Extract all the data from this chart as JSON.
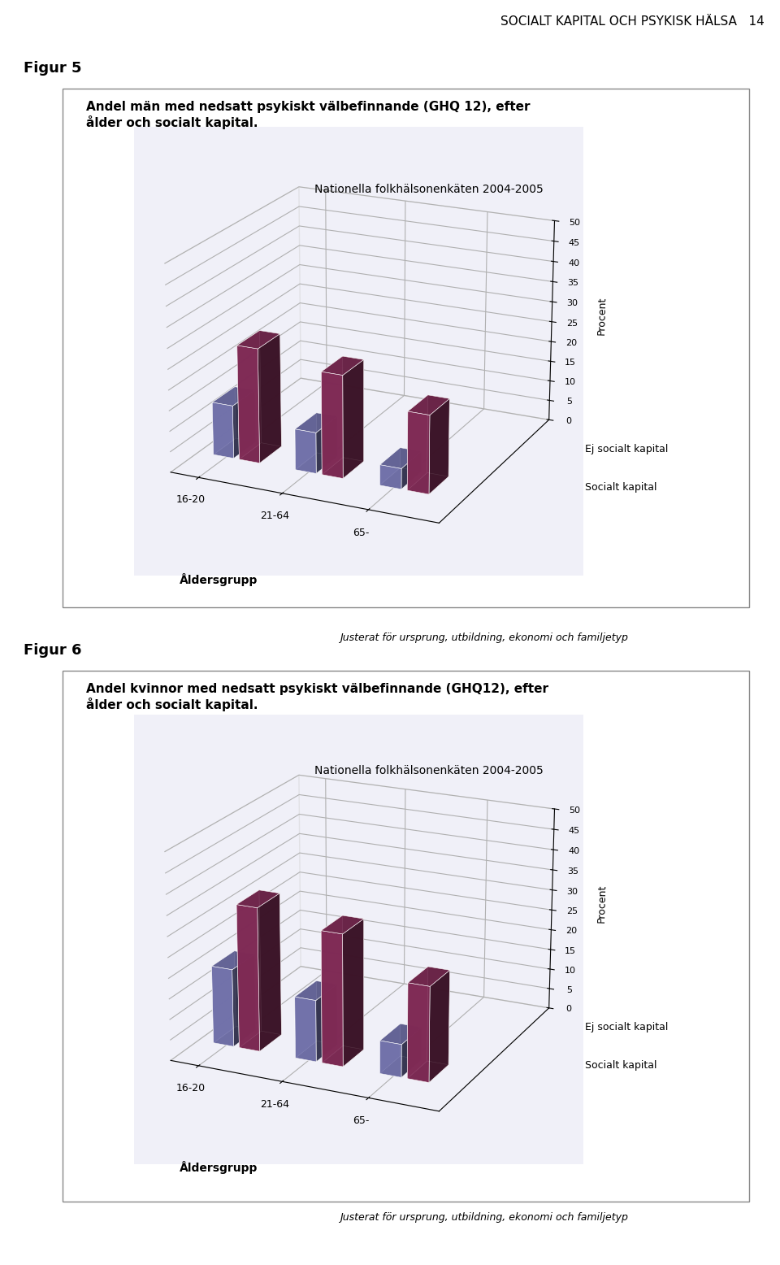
{
  "page_header": "SOCIALT KAPITAL OCH PSYKISK HÄLSA   14",
  "fig5_label": "Figur 5",
  "fig5_title": "Andel män med nedsatt psykiskt välbefinnande (GHQ 12), efter\nålder och socialt kapital.",
  "fig5_subtitle": "Nationella folkhälsonenkäten 2004-2005",
  "fig5_socialt_kapital": [
    13,
    10,
    5
  ],
  "fig5_ej_socialt_kapital": [
    28,
    25,
    19
  ],
  "fig5_footer": "Justerat för ursprung, utbildning, ekonomi och familjetyp",
  "fig6_label": "Figur 6",
  "fig6_title": "Andel kvinnor med nedsatt psykiskt välbefinnande (GHQ12), efter\nålder och socialt kapital.",
  "fig6_subtitle": "Nationella folkhälsonenkäten 2004-2005",
  "fig6_socialt_kapital": [
    19,
    15,
    8
  ],
  "fig6_ej_socialt_kapital": [
    35,
    32,
    23
  ],
  "fig6_footer": "Justerat för ursprung, utbildning, ekonomi och familjetyp",
  "age_groups": [
    "16-20",
    "21-64",
    "65-"
  ],
  "xlabel": "Åldersgrupp",
  "ylabel": "Procent",
  "ylim": [
    0,
    50
  ],
  "yticks": [
    0,
    5,
    10,
    15,
    20,
    25,
    30,
    35,
    40,
    45,
    50
  ],
  "bar_color_socialt": "#8080c0",
  "bar_color_ej_socialt": "#903060",
  "legend_ej_socialt": "Ej socialt kapital",
  "legend_socialt": "Socialt kapital",
  "background_color": "#ffffff",
  "chart_bg": "#f0f0f8"
}
